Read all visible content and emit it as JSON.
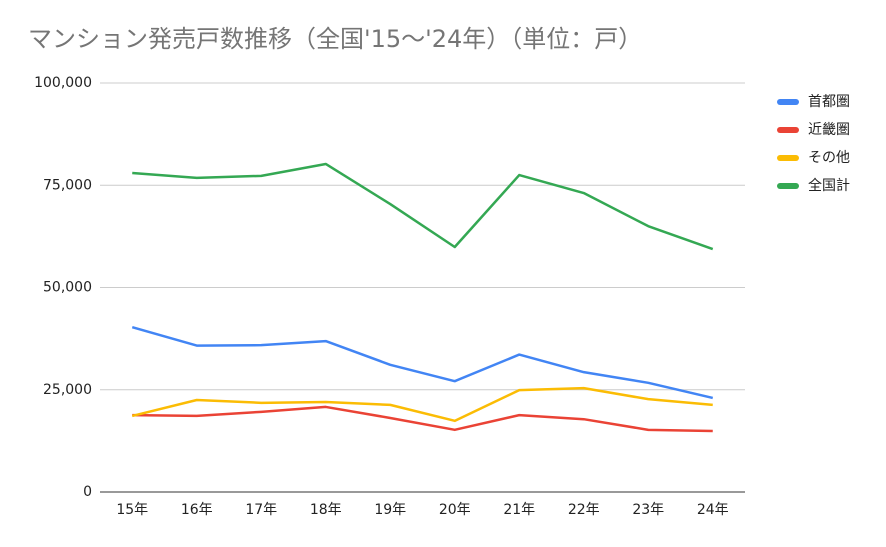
{
  "chart_data": {
    "type": "line",
    "title": "マンション発売戸数推移（全国'15～'24年）（単位：戸）",
    "categories": [
      "15年",
      "16年",
      "17年",
      "18年",
      "19年",
      "20年",
      "21年",
      "22年",
      "23年",
      "24年"
    ],
    "series": [
      {
        "name": "首都圏",
        "color": "#4285f4",
        "values": [
          40300,
          35800,
          35900,
          36900,
          31100,
          27100,
          33600,
          29300,
          26700,
          23000
        ]
      },
      {
        "name": "近畿圏",
        "color": "#ea4335",
        "values": [
          18800,
          18600,
          19600,
          20800,
          18100,
          15200,
          18800,
          17800,
          15200,
          14900
        ]
      },
      {
        "name": "その他",
        "color": "#fbbc04",
        "values": [
          18600,
          22500,
          21800,
          22000,
          21300,
          17400,
          24900,
          25400,
          22700,
          21300
        ]
      },
      {
        "name": "全国計",
        "color": "#34a853",
        "values": [
          78000,
          76800,
          77300,
          80200,
          70400,
          59900,
          77500,
          73100,
          65000,
          59400
        ]
      }
    ],
    "ylim": [
      0,
      100000
    ],
    "yticks": [
      0,
      {
        "value": 25000,
        "label": "25,000"
      },
      {
        "value": 50000,
        "label": "50,000"
      },
      {
        "value": 75000,
        "label": "75,000"
      },
      {
        "value": 100000,
        "label": "100,000"
      }
    ],
    "grid": true,
    "legend": "right"
  }
}
